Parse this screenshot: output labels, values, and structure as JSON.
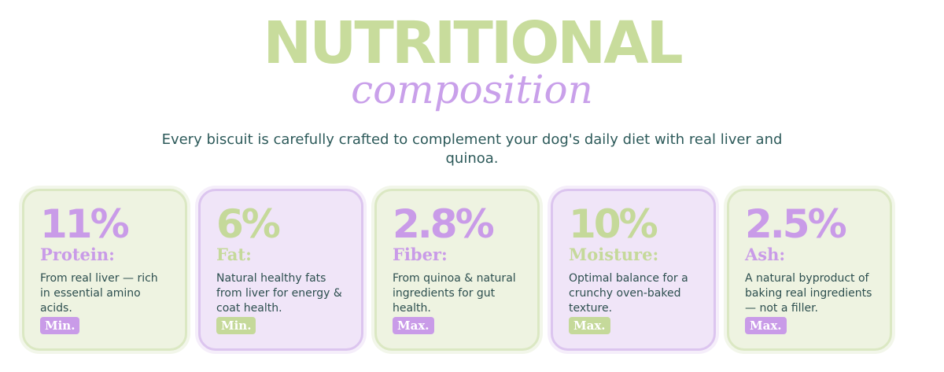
{
  "header": {
    "title": "NUTRITIONAL",
    "subtitle": "composition",
    "description": "Every biscuit is carefully crafted to complement your dog's daily diet with real liver and quinoa."
  },
  "cards": [
    {
      "value": "11%",
      "label": "Protein:",
      "text": "From real liver — rich in essential amino acids.",
      "badge": "Min."
    },
    {
      "value": "6%",
      "label": "Fat:",
      "text": "Natural healthy fats from liver for energy & coat health.",
      "badge": "Min."
    },
    {
      "value": "2.8%",
      "label": "Fiber:",
      "text": "From quinoa & natural ingredients for gut health.",
      "badge": "Max."
    },
    {
      "value": "10%",
      "label": "Moisture:",
      "text": "Optimal balance for a crunchy oven-baked texture.",
      "badge": "Max."
    },
    {
      "value": "2.5%",
      "label": "Ash:",
      "text": "A natural byproduct of baking real ingredients — not a filler.",
      "badge": "Max."
    }
  ]
}
